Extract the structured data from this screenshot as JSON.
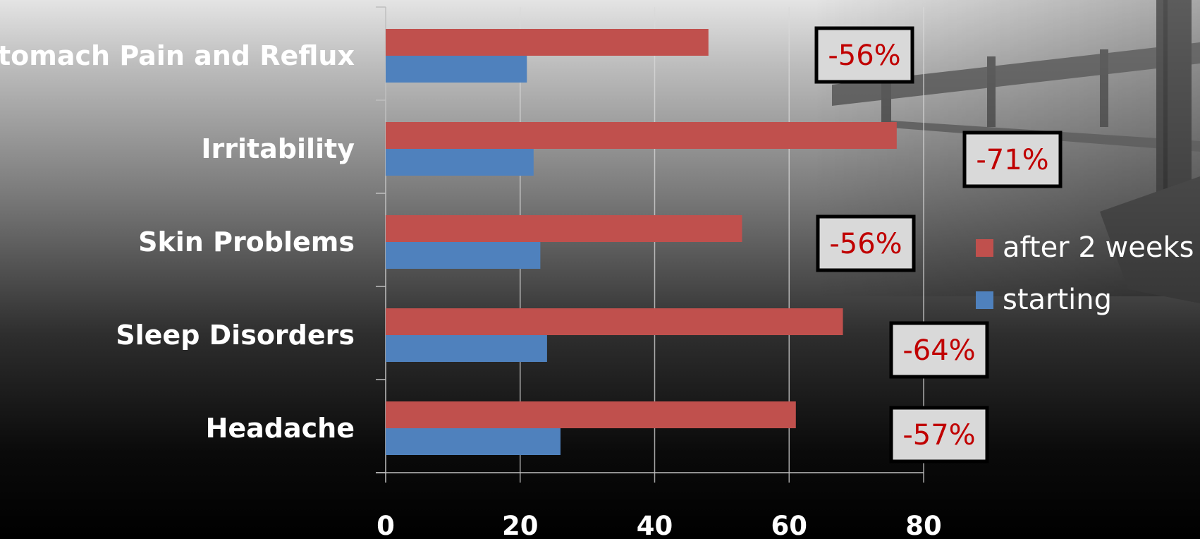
{
  "chart_data": {
    "type": "bar",
    "orientation": "horizontal",
    "categories": [
      "Stomach Pain and Reflux",
      "Irritability",
      "Skin Problems",
      "Sleep Disorders",
      "Headache"
    ],
    "series": [
      {
        "name": "after 2 weeks",
        "color": "#c0504d",
        "values": [
          48,
          76,
          53,
          68,
          61
        ]
      },
      {
        "name": "starting",
        "color": "#4f81bd",
        "values": [
          21,
          22,
          23,
          24,
          26
        ]
      }
    ],
    "xlim": [
      0,
      80
    ],
    "xticks": [
      "0",
      "20",
      "40",
      "60",
      "80"
    ],
    "grid": true,
    "legend_position": "right",
    "callouts": [
      "-56%",
      "-71%",
      "-56%",
      "-64%",
      "-57%"
    ],
    "callout_text_color": "#c00000",
    "title": "",
    "xlabel": "",
    "ylabel": ""
  }
}
